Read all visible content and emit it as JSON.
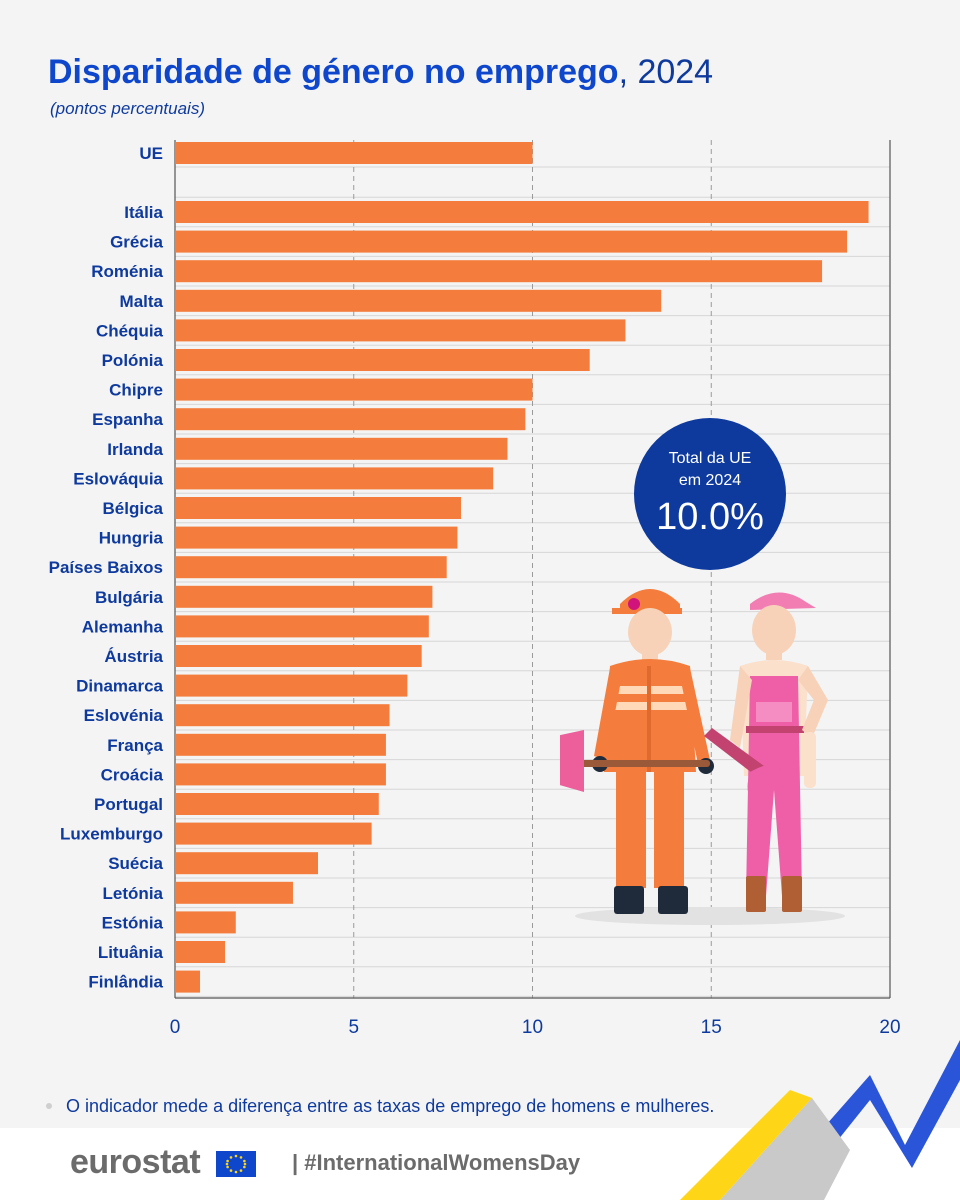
{
  "header": {
    "title_main": "Disparidade de género no emprego",
    "title_year": ", 2024",
    "subtitle": "(pontos percentuais)"
  },
  "chart_data": {
    "type": "bar",
    "orientation": "horizontal",
    "categories": [
      "UE",
      "Itália",
      "Grécia",
      "Roménia",
      "Malta",
      "Chéquia",
      "Polónia",
      "Chipre",
      "Espanha",
      "Irlanda",
      "Eslováquia",
      "Bélgica",
      "Hungria",
      "Países Baixos",
      "Bulgária",
      "Alemanha",
      "Áustria",
      "Dinamarca",
      "Eslovénia",
      "França",
      "Croácia",
      "Portugal",
      "Luxemburgo",
      "Suécia",
      "Letónia",
      "Estónia",
      "Lituânia",
      "Finlândia"
    ],
    "values": [
      10.0,
      19.4,
      18.8,
      18.1,
      13.6,
      12.6,
      11.6,
      10.0,
      9.8,
      9.3,
      8.9,
      8.0,
      7.9,
      7.6,
      7.2,
      7.1,
      6.9,
      6.5,
      6.0,
      5.9,
      5.9,
      5.7,
      5.5,
      4.0,
      3.3,
      1.7,
      1.4,
      0.7
    ],
    "xlim": [
      0,
      20
    ],
    "xticks": [
      0,
      5,
      10,
      15,
      20
    ],
    "bar_color": "#f47c3c",
    "grid": true,
    "legend": "none"
  },
  "badge": {
    "line1": "Total da UE",
    "line2": "em 2024",
    "value": "10.0%"
  },
  "footnote": "O indicador mede a diferença entre as taxas de emprego de homens e mulheres.",
  "footer": {
    "brand": "eurostat",
    "hashtag": "| #InternationalWomensDay"
  },
  "colors": {
    "title": "#0e47cb",
    "text": "#0e3a9e",
    "bar": "#f47c3c",
    "badge": "#0e3a9e"
  }
}
